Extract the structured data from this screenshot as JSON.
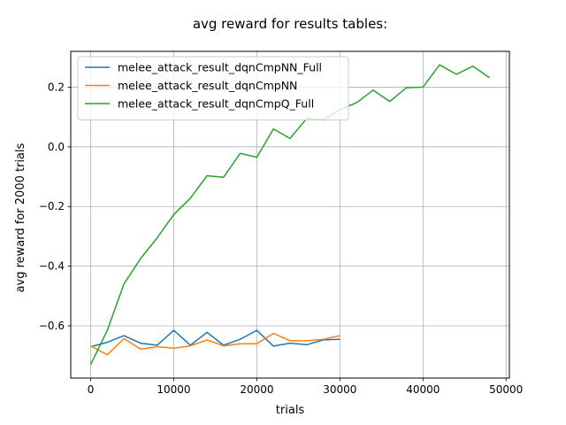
{
  "chart_data": {
    "type": "line",
    "title": "avg reward for results tables:",
    "xlabel": "trials",
    "ylabel": "avg reward for 2000 trials",
    "xlim": [
      -2400,
      50400
    ],
    "ylim": [
      -0.775,
      0.32
    ],
    "xticks": [
      0,
      10000,
      20000,
      30000,
      40000,
      50000
    ],
    "xtick_labels": [
      "0",
      "10000",
      "20000",
      "30000",
      "40000",
      "50000"
    ],
    "yticks": [
      -0.6,
      -0.4,
      -0.2,
      0.0,
      0.2
    ],
    "ytick_labels": [
      "−0.6",
      "−0.4",
      "−0.2",
      "0.0",
      "0.2"
    ],
    "grid": true,
    "legend_position": "top-left",
    "series": [
      {
        "name": "melee_attack_result_dqnCmpNN_Full",
        "color": "#1f77b4",
        "x": [
          0,
          2000,
          4000,
          6000,
          8000,
          10000,
          12000,
          14000,
          16000,
          18000,
          20000,
          22000,
          24000,
          26000,
          28000,
          30000
        ],
        "y": [
          -0.67,
          -0.655,
          -0.633,
          -0.658,
          -0.665,
          -0.615,
          -0.665,
          -0.622,
          -0.665,
          -0.645,
          -0.615,
          -0.668,
          -0.658,
          -0.663,
          -0.647,
          -0.645
        ]
      },
      {
        "name": "melee_attack_result_dqnCmpNN",
        "color": "#ff7f0e",
        "x": [
          0,
          2000,
          4000,
          6000,
          8000,
          10000,
          12000,
          14000,
          16000,
          18000,
          20000,
          22000,
          24000,
          26000,
          28000,
          30000
        ],
        "y": [
          -0.667,
          -0.697,
          -0.643,
          -0.678,
          -0.67,
          -0.675,
          -0.667,
          -0.647,
          -0.667,
          -0.66,
          -0.66,
          -0.625,
          -0.65,
          -0.65,
          -0.645,
          -0.633
        ]
      },
      {
        "name": "melee_attack_result_dqnCmpQ_Full",
        "color": "#2ca02c",
        "x": [
          0,
          2000,
          4000,
          6000,
          8000,
          10000,
          12000,
          14000,
          16000,
          18000,
          20000,
          22000,
          24000,
          26000,
          28000,
          30000,
          32000,
          34000,
          36000,
          38000,
          40000,
          42000,
          44000,
          46000,
          48000
        ],
        "y": [
          -0.73,
          -0.615,
          -0.46,
          -0.375,
          -0.305,
          -0.227,
          -0.172,
          -0.097,
          -0.102,
          -0.022,
          -0.035,
          0.06,
          0.028,
          0.095,
          0.09,
          0.125,
          0.148,
          0.19,
          0.152,
          0.198,
          0.2,
          0.275,
          0.243,
          0.27,
          0.232
        ]
      }
    ]
  }
}
